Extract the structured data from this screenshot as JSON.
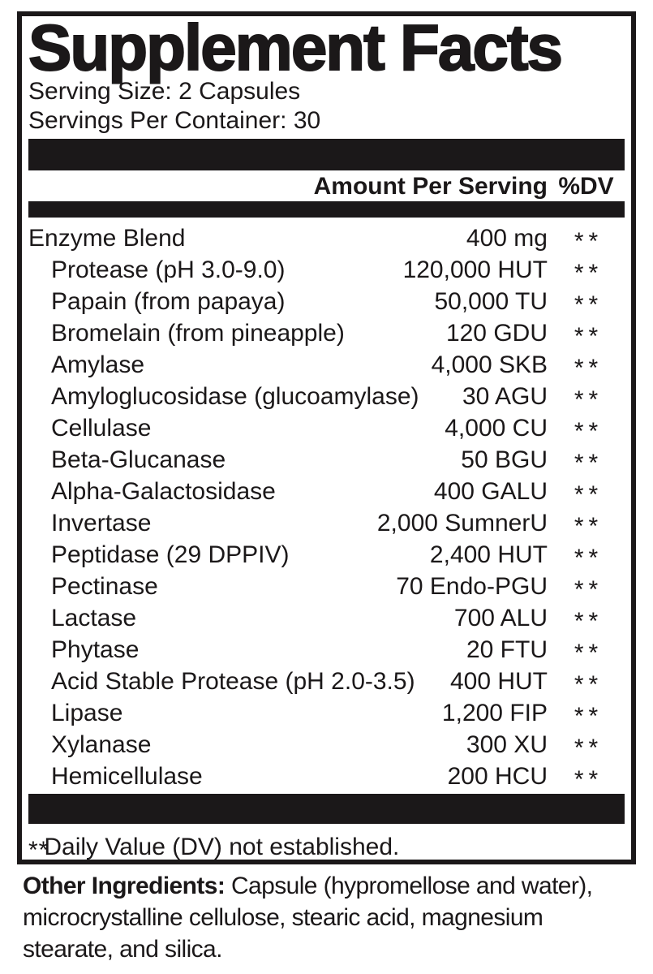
{
  "colors": {
    "ink": "#1b1819",
    "background": "#ffffff"
  },
  "panel": {
    "title": "Supplement Facts",
    "serving_size": "Serving Size: 2 Capsules",
    "servings_per_container": "Servings Per Container: 30",
    "header": {
      "amount_label": "Amount Per Serving",
      "dv_label": "%DV"
    },
    "rows": [
      {
        "name": "Enzyme Blend",
        "amount": "400 mg",
        "dv": "**",
        "indent": false
      },
      {
        "name": "Protease (pH 3.0-9.0)",
        "amount": "120,000 HUT",
        "dv": "**",
        "indent": true
      },
      {
        "name": "Papain (from papaya)",
        "amount": "50,000 TU",
        "dv": "**",
        "indent": true
      },
      {
        "name": "Bromelain (from pineapple)",
        "amount": "120 GDU",
        "dv": "**",
        "indent": true
      },
      {
        "name": "Amylase",
        "amount": "4,000 SKB",
        "dv": "**",
        "indent": true
      },
      {
        "name": "Amyloglucosidase (glucoamylase)",
        "amount": "30 AGU",
        "dv": "**",
        "indent": true
      },
      {
        "name": "Cellulase",
        "amount": "4,000 CU",
        "dv": "**",
        "indent": true
      },
      {
        "name": "Beta-Glucanase",
        "amount": "50 BGU",
        "dv": "**",
        "indent": true
      },
      {
        "name": "Alpha-Galactosidase",
        "amount": "400 GALU",
        "dv": "**",
        "indent": true
      },
      {
        "name": "Invertase",
        "amount": "2,000 SumnerU",
        "dv": "**",
        "indent": true
      },
      {
        "name": "Peptidase (29 DPPIV)",
        "amount": "2,400 HUT",
        "dv": "**",
        "indent": true
      },
      {
        "name": "Pectinase",
        "amount": "70 Endo-PGU",
        "dv": "**",
        "indent": true
      },
      {
        "name": "Lactase",
        "amount": "700 ALU",
        "dv": "**",
        "indent": true
      },
      {
        "name": "Phytase",
        "amount": "20 FTU",
        "dv": "**",
        "indent": true
      },
      {
        "name": "Acid Stable Protease (pH 2.0-3.5)",
        "amount": "400 HUT",
        "dv": "**",
        "indent": true
      },
      {
        "name": "Lipase",
        "amount": "1,200 FIP",
        "dv": "**",
        "indent": true
      },
      {
        "name": "Xylanase",
        "amount": "300 XU",
        "dv": "**",
        "indent": true
      },
      {
        "name": "Hemicellulase",
        "amount": "200 HCU",
        "dv": "**",
        "indent": true
      }
    ],
    "footnote": {
      "marker": "**",
      "text": "Daily Value (DV) not established."
    }
  },
  "other_ingredients": {
    "label": "Other Ingredients:",
    "lines": [
      "Capsule (hypromellose and water),",
      "microcrystalline cellulose, stearic acid, magnesium",
      "stearate, and silica."
    ]
  }
}
